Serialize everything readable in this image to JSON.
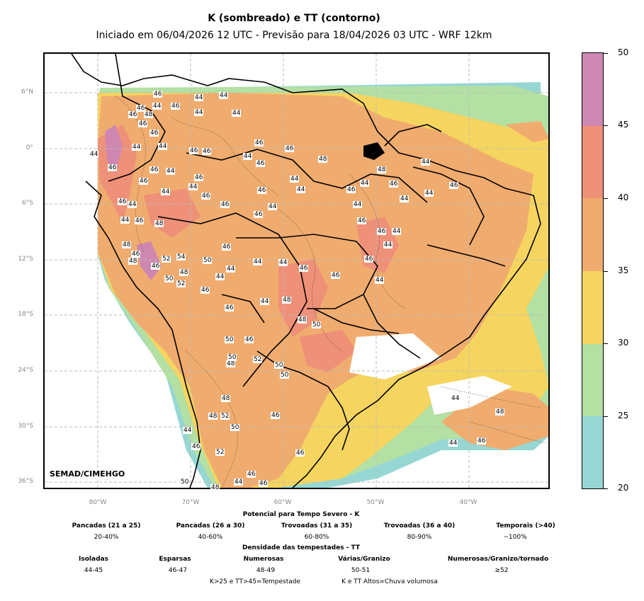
{
  "header": {
    "title": "K (sombreado) e TT (contorno)",
    "subtitle": "Iniciado em 06/04/2026 12 UTC - Previsão para 18/04/2026 03 UTC - WRF 12km"
  },
  "map": {
    "lat_labels": [
      "6°N",
      "0°",
      "6°S",
      "12°S",
      "18°S",
      "24°S",
      "30°S",
      "36°S"
    ],
    "lon_labels": [
      "80°W",
      "70°W",
      "60°W",
      "50°W",
      "40°W"
    ],
    "credit": "SEMAD/CIMEHGO",
    "contour_labels": [
      "46",
      "44",
      "44",
      "46",
      "44",
      "46",
      "48",
      "44",
      "44",
      "46",
      "46",
      "44",
      "46",
      "44",
      "48",
      "44",
      "46",
      "46",
      "44",
      "46",
      "46",
      "46",
      "46",
      "48",
      "46",
      "44",
      "44",
      "46",
      "44",
      "46",
      "44",
      "46",
      "46",
      "44",
      "44",
      "46",
      "44",
      "46",
      "44",
      "46",
      "44",
      "44",
      "46",
      "46",
      "44",
      "44",
      "46",
      "44",
      "46",
      "46",
      "48",
      "46",
      "44",
      "44",
      "46",
      "48",
      "46",
      "48",
      "52",
      "54",
      "50",
      "44",
      "44",
      "46",
      "46",
      "44",
      "46",
      "48",
      "50",
      "52",
      "44",
      "46",
      "46",
      "44",
      "44",
      "48",
      "46",
      "48",
      "50",
      "50",
      "46",
      "48",
      "50",
      "52",
      "50",
      "50",
      "48",
      "52",
      "48",
      "46",
      "44",
      "48",
      "44",
      "46",
      "44",
      "46",
      "52",
      "50",
      "46",
      "44",
      "46",
      "46",
      "50",
      "48"
    ]
  },
  "chart_data": {
    "type": "heatmap",
    "variable_shaded": "K",
    "variable_contour": "TT",
    "colorbar": {
      "ticks": [
        "50",
        "45",
        "40",
        "35",
        "30",
        "25",
        "20"
      ],
      "levels": [
        20,
        25,
        30,
        35,
        40,
        45,
        50
      ],
      "colors": [
        "#96d7d4",
        "#b3e0a3",
        "#f5d55f",
        "#f0ac6e",
        "#ef9078",
        "#cd87b0"
      ]
    }
  },
  "legend": {
    "k_title": "Potencial para Tempo Severo - K",
    "k_items": [
      {
        "label": "Pancadas (21 a 25)",
        "value": "20-40%"
      },
      {
        "label": "Pancadas (26 a 30)",
        "value": "40-60%"
      },
      {
        "label": "Trovoadas (31 a 35)",
        "value": "60-80%"
      },
      {
        "label": "Trovoadas (36 a 40)",
        "value": "80-90%"
      },
      {
        "label": "Temporais (>40)",
        "value": "~100%"
      }
    ],
    "tt_title": "Densidade das tempestades - TT",
    "tt_items": [
      {
        "label": "Isoladas",
        "value": "44-45"
      },
      {
        "label": "Esparsas",
        "value": "46-47"
      },
      {
        "label": "Numerosas",
        "value": "48-49"
      },
      {
        "label": "Várias/Granizo",
        "value": "50-51"
      },
      {
        "label": "Numerosas/Granizo/tornado",
        "value": "≥52"
      }
    ],
    "footer_left": "K>25 e TT>45=Tempestade",
    "footer_right": "K e TT Altos=Chuva volumosa"
  }
}
